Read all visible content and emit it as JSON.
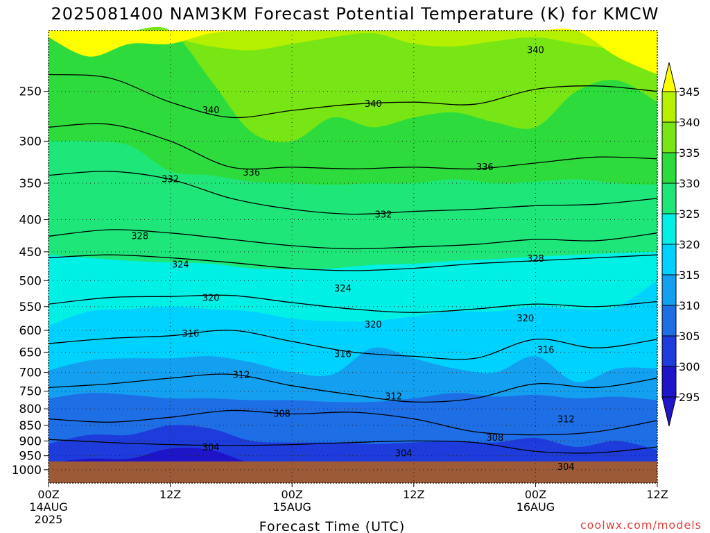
{
  "title": "2025081400 NAM3KM Forecast Potential Temperature (K) for KMCW",
  "credit": "coolwx.com/models",
  "chart_data": {
    "type": "contour",
    "title": "2025081400 NAM3KM Forecast Potential Temperature (K) for KMCW",
    "xlabel": "Forecast Time (UTC)",
    "ylabel": "",
    "x_ticks": [
      {
        "hour": 0,
        "label": "00Z",
        "sub1": "14AUG",
        "sub2": "2025"
      },
      {
        "hour": 12,
        "label": "12Z",
        "sub1": "",
        "sub2": ""
      },
      {
        "hour": 24,
        "label": "00Z",
        "sub1": "15AUG",
        "sub2": ""
      },
      {
        "hour": 36,
        "label": "12Z",
        "sub1": "",
        "sub2": ""
      },
      {
        "hour": 48,
        "label": "00Z",
        "sub1": "16AUG",
        "sub2": ""
      },
      {
        "hour": 60,
        "label": "12Z",
        "sub1": "",
        "sub2": ""
      }
    ],
    "xlim": [
      0,
      60
    ],
    "y_ticks": [
      250,
      300,
      350,
      400,
      450,
      500,
      550,
      600,
      650,
      700,
      750,
      800,
      850,
      900,
      950,
      1000
    ],
    "ylim": [
      200,
      1050
    ],
    "y_scale": "log-pressure",
    "surface_pressure": 970,
    "ground_color": "#9c5a36",
    "grid": true,
    "colorbar": {
      "labels": [
        "345",
        "340",
        "335",
        "330",
        "325",
        "320",
        "315",
        "310",
        "305",
        "300",
        "295"
      ],
      "levels": [
        345,
        340,
        335,
        330,
        325,
        320,
        315,
        310,
        305,
        300,
        295
      ],
      "colors": [
        "#ffff00",
        "#b4f000",
        "#78e614",
        "#2ddc3c",
        "#1ee678",
        "#00f0e6",
        "#00d2ff",
        "#14a0f0",
        "#1e6ee6",
        "#1e3cdc",
        "#1e14c8"
      ],
      "under_color": "#1e14c8",
      "over_color": "#ffff00"
    },
    "layer_base_pressure_vs_time": {
      "hours": [
        0,
        4,
        8,
        12,
        16,
        20,
        24,
        28,
        32,
        36,
        40,
        44,
        48,
        52,
        56,
        60
      ],
      "levels": {
        "300": [
          975,
          960,
          960,
          925,
          930,
          975,
          975,
          975,
          975,
          975,
          975,
          975,
          975,
          975,
          975,
          975
        ],
        "305": [
          910,
          880,
          880,
          850,
          860,
          900,
          905,
          905,
          910,
          905,
          900,
          905,
          890,
          920,
          900,
          930
        ],
        "310": [
          770,
          755,
          760,
          770,
          770,
          775,
          775,
          780,
          780,
          770,
          755,
          765,
          760,
          770,
          765,
          775
        ],
        "315": [
          695,
          670,
          665,
          665,
          660,
          675,
          700,
          705,
          640,
          665,
          690,
          700,
          660,
          725,
          690,
          690
        ],
        "320": [
          590,
          560,
          555,
          550,
          555,
          560,
          575,
          580,
          580,
          570,
          560,
          560,
          550,
          555,
          550,
          500
        ],
        "325": [
          455,
          460,
          465,
          468,
          470,
          478,
          480,
          478,
          472,
          470,
          465,
          462,
          458,
          455,
          452,
          450
        ],
        "330": [
          300,
          300,
          305,
          335,
          340,
          348,
          350,
          352,
          350,
          350,
          345,
          350,
          348,
          345,
          350,
          352
        ],
        "335": [
          180,
          180,
          185,
          190,
          240,
          290,
          300,
          275,
          285,
          275,
          270,
          280,
          285,
          250,
          240,
          260
        ],
        "340": [
          180,
          180,
          185,
          205,
          212,
          215,
          210,
          205,
          202,
          210,
          212,
          208,
          205,
          210,
          215,
          222
        ],
        "345": [
          205,
          220,
          210,
          210,
          202,
          200,
          200,
          200,
          200,
          200,
          200,
          200,
          200,
          200,
          220,
          235
        ]
      }
    },
    "contour_lines": [
      {
        "label": "304",
        "hours": [
          0,
          6,
          12,
          18,
          24,
          30,
          36,
          42,
          48,
          54,
          60
        ],
        "pressure": [
          895,
          905,
          912,
          915,
          912,
          905,
          900,
          905,
          935,
          940,
          920
        ]
      },
      {
        "label": "308",
        "hours": [
          0,
          6,
          12,
          18,
          24,
          30,
          36,
          42,
          48,
          54,
          60
        ],
        "pressure": [
          830,
          840,
          825,
          805,
          815,
          810,
          830,
          870,
          880,
          870,
          835
        ]
      },
      {
        "label": "312",
        "hours": [
          0,
          6,
          12,
          18,
          24,
          30,
          36,
          42,
          48,
          54,
          60
        ],
        "pressure": [
          740,
          730,
          715,
          705,
          735,
          760,
          780,
          770,
          730,
          740,
          715
        ]
      },
      {
        "label": "316",
        "hours": [
          0,
          6,
          12,
          18,
          24,
          30,
          36,
          42,
          48,
          54,
          60
        ],
        "pressure": [
          630,
          618,
          612,
          600,
          625,
          650,
          660,
          665,
          620,
          640,
          620
        ]
      },
      {
        "label": "320",
        "hours": [
          0,
          6,
          12,
          18,
          24,
          30,
          36,
          42,
          48,
          54,
          60
        ],
        "pressure": [
          545,
          532,
          530,
          528,
          542,
          555,
          562,
          555,
          545,
          550,
          540
        ]
      },
      {
        "label": "324",
        "hours": [
          0,
          6,
          12,
          18,
          24,
          30,
          36,
          42,
          48,
          54,
          60
        ],
        "pressure": [
          460,
          455,
          460,
          468,
          478,
          482,
          478,
          470,
          465,
          460,
          455
        ]
      },
      {
        "label": "328",
        "hours": [
          0,
          6,
          12,
          18,
          24,
          30,
          36,
          42,
          48,
          54,
          60
        ],
        "pressure": [
          425,
          415,
          420,
          430,
          440,
          445,
          442,
          438,
          430,
          432,
          420
        ]
      },
      {
        "label": "332",
        "hours": [
          0,
          6,
          12,
          18,
          24,
          30,
          36,
          42,
          48,
          54,
          60
        ],
        "pressure": [
          340,
          335,
          345,
          370,
          385,
          392,
          388,
          385,
          380,
          378,
          370
        ]
      },
      {
        "label": "336",
        "hours": [
          0,
          6,
          12,
          18,
          24,
          30,
          36,
          42,
          48,
          54,
          60
        ],
        "pressure": [
          285,
          282,
          300,
          330,
          330,
          332,
          330,
          332,
          325,
          318,
          320
        ]
      },
      {
        "label": "340",
        "hours": [
          0,
          6,
          12,
          18,
          24,
          30,
          36,
          42,
          48,
          54,
          60
        ],
        "pressure": [
          235,
          238,
          260,
          275,
          268,
          262,
          260,
          262,
          248,
          245,
          250
        ]
      }
    ],
    "contour_labels": [
      {
        "text": "304",
        "hour": 16,
        "pressure": 922
      },
      {
        "text": "304",
        "hour": 35,
        "pressure": 943
      },
      {
        "text": "304",
        "hour": 51,
        "pressure": 990
      },
      {
        "text": "308",
        "hour": 23,
        "pressure": 815
      },
      {
        "text": "308",
        "hour": 44,
        "pressure": 890
      },
      {
        "text": "312",
        "hour": 19,
        "pressure": 707
      },
      {
        "text": "312",
        "hour": 34,
        "pressure": 765
      },
      {
        "text": "312",
        "hour": 51,
        "pressure": 832
      },
      {
        "text": "316",
        "hour": 14,
        "pressure": 608
      },
      {
        "text": "316",
        "hour": 29,
        "pressure": 655
      },
      {
        "text": "316",
        "hour": 49,
        "pressure": 645
      },
      {
        "text": "320",
        "hour": 16,
        "pressure": 533
      },
      {
        "text": "320",
        "hour": 32,
        "pressure": 588
      },
      {
        "text": "320",
        "hour": 47,
        "pressure": 575
      },
      {
        "text": "324",
        "hour": 13,
        "pressure": 472
      },
      {
        "text": "324",
        "hour": 29,
        "pressure": 515
      },
      {
        "text": "328",
        "hour": 9,
        "pressure": 425
      },
      {
        "text": "328",
        "hour": 48,
        "pressure": 462
      },
      {
        "text": "332",
        "hour": 12,
        "pressure": 345
      },
      {
        "text": "332",
        "hour": 33,
        "pressure": 393
      },
      {
        "text": "336",
        "hour": 20,
        "pressure": 337
      },
      {
        "text": "336",
        "hour": 43,
        "pressure": 330
      },
      {
        "text": "340",
        "hour": 16,
        "pressure": 268
      },
      {
        "text": "340",
        "hour": 32,
        "pressure": 262
      },
      {
        "text": "340",
        "hour": 48,
        "pressure": 215
      }
    ]
  }
}
